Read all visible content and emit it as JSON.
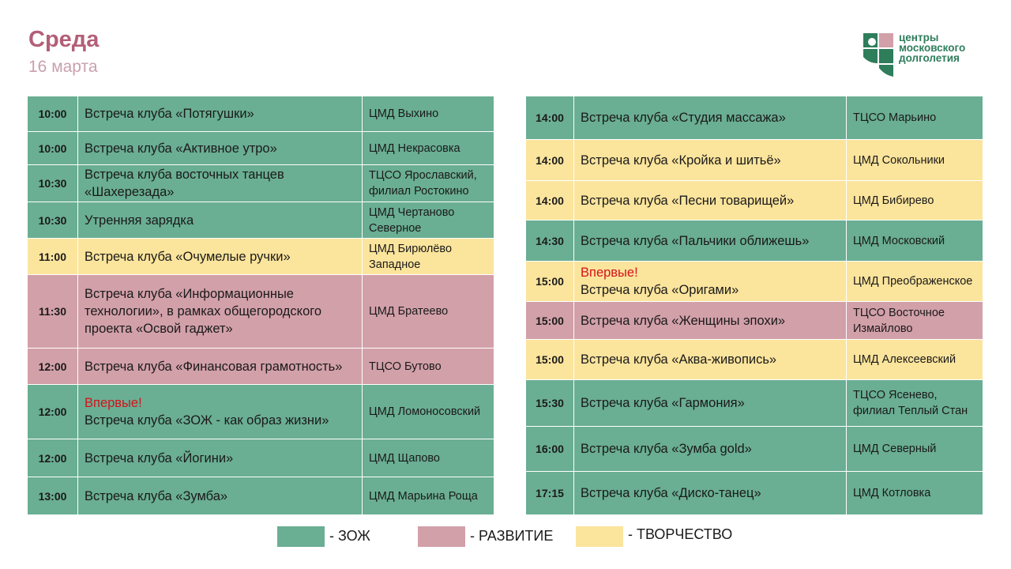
{
  "header": {
    "title": "Среда",
    "date": "16 марта"
  },
  "logo": {
    "line1": "центры",
    "line2": "московского",
    "line3": "долголетия"
  },
  "colors": {
    "zozh": "#6aae93",
    "razvitie": "#d2a0a9",
    "tvorchestvo": "#fbe49c",
    "title": "#b35f78",
    "new_badge": "#d3131b"
  },
  "left_table": [
    {
      "time": "10:00",
      "new": "",
      "event": "Встреча клуба «Потягушки»",
      "place": "ЦМД Выхино",
      "category": "zozh"
    },
    {
      "time": "10:00",
      "new": "",
      "event": "Встреча клуба «Активное утро»",
      "place": "ЦМД Некрасовка",
      "category": "zozh"
    },
    {
      "time": "10:30",
      "new": "",
      "event": "Встреча клуба восточных танцев «Шахерезада»",
      "place": "ТЦСО Ярославский, филиал Ростокино",
      "category": "zozh"
    },
    {
      "time": "10:30",
      "new": "",
      "event": "Утренняя зарядка",
      "place": "ЦМД Чертаново Северное",
      "category": "zozh"
    },
    {
      "time": "11:00",
      "new": "",
      "event": "Встреча клуба «Очумелые ручки»",
      "place": "ЦМД Бирюлёво Западное",
      "category": "tvor"
    },
    {
      "time": "11:30",
      "new": "",
      "event": "Встреча клуба «Информационные технологии», в рамках общегородского проекта «Освой гаджет»",
      "place": "ЦМД Братеево",
      "category": "razv"
    },
    {
      "time": "12:00",
      "new": "",
      "event": "Встреча клуба «Финансовая грамотность»",
      "place": "ТЦСО Бутово",
      "category": "razv"
    },
    {
      "time": "12:00",
      "new": "Впервые!",
      "event": "Встреча клуба «ЗОЖ - как образ жизни»",
      "place": "ЦМД Ломоносовский",
      "category": "zozh"
    },
    {
      "time": "12:00",
      "new": "",
      "event": "Встреча клуба «Йогини»",
      "place": "ЦМД Щапово",
      "category": "zozh"
    },
    {
      "time": "13:00",
      "new": "",
      "event": "Встреча клуба «Зумба»",
      "place": "ЦМД Марьина Роща",
      "category": "zozh"
    }
  ],
  "right_table": [
    {
      "time": "14:00",
      "new": "",
      "event": "Встреча клуба «Студия массажа»",
      "place": "ТЦСО Марьино",
      "category": "zozh"
    },
    {
      "time": "14:00",
      "new": "",
      "event": "Встреча клуба «Кройка и шитьё»",
      "place": "ЦМД Сокольники",
      "category": "tvor"
    },
    {
      "time": "14:00",
      "new": "",
      "event": "Встреча клуба «Песни товарищей»",
      "place": "ЦМД Бибирево",
      "category": "tvor"
    },
    {
      "time": "14:30",
      "new": "",
      "event": "Встреча клуба «Пальчики оближешь»",
      "place": "ЦМД Московский",
      "category": "zozh"
    },
    {
      "time": "15:00",
      "new": "Впервые!",
      "event": "Встреча клуба «Оригами»",
      "place": "ЦМД Преображенское",
      "category": "tvor"
    },
    {
      "time": "15:00",
      "new": "",
      "event": "Встреча клуба «Женщины эпохи»",
      "place": "ТЦСО Восточное Измайлово",
      "category": "razv"
    },
    {
      "time": "15:00",
      "new": "",
      "event": "Встреча клуба «Аква-живопись»",
      "place": "ЦМД Алексеевский",
      "category": "tvor"
    },
    {
      "time": "15:30",
      "new": "",
      "event": "Встреча клуба «Гармония»",
      "place": "ТЦСО Ясенево, филиал Теплый Стан",
      "category": "zozh"
    },
    {
      "time": "16:00",
      "new": "",
      "event": "Встреча клуба «Зумба gold»",
      "place": "ЦМД Северный",
      "category": "zozh"
    },
    {
      "time": "17:15",
      "new": "",
      "event": "Встреча клуба «Диско-танец»",
      "place": "ЦМД Котловка",
      "category": "zozh"
    }
  ],
  "legend": [
    {
      "category": "zozh",
      "label": "- ЗОЖ"
    },
    {
      "category": "razv",
      "label": "- РАЗВИТИЕ"
    },
    {
      "category": "tvor",
      "label": "- ТВОРЧЕСТВО"
    }
  ]
}
